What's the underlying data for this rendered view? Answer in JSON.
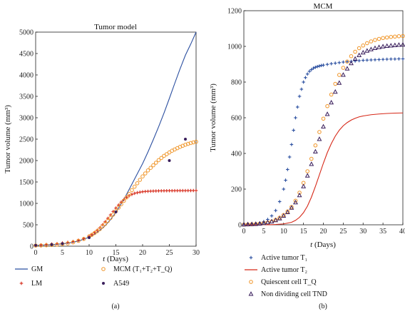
{
  "chart_data": [
    {
      "panel": "(a)",
      "type": "line",
      "title": "Tumor model",
      "xlabel_var": "t",
      "xlabel_unit": " (Days)",
      "ylabel": "Tumor volume (mm³)",
      "xlim": [
        0,
        30
      ],
      "ylim": [
        0,
        5000
      ],
      "xticks": [
        0,
        5,
        10,
        15,
        20,
        25,
        30
      ],
      "yticks": [
        0,
        500,
        1000,
        1500,
        2000,
        2500,
        3000,
        3500,
        4000,
        4500,
        5000
      ],
      "legend_placement": "bottom",
      "series": [
        {
          "name": "GM",
          "style": "line",
          "color": "#2b4fa0",
          "x": [
            0,
            2,
            4,
            6,
            8,
            10,
            11,
            12,
            13,
            14,
            15,
            16,
            17,
            18,
            19,
            20,
            21,
            22,
            23,
            24,
            25,
            26,
            27,
            28,
            29,
            30
          ],
          "y": [
            20,
            30,
            45,
            70,
            120,
            210,
            280,
            370,
            480,
            620,
            790,
            990,
            1210,
            1450,
            1690,
            1930,
            2200,
            2490,
            2790,
            3110,
            3450,
            3800,
            4140,
            4460,
            4720,
            5000
          ]
        },
        {
          "name": "LM",
          "style": "plus",
          "color": "#d62818",
          "x": [
            0,
            1,
            2,
            3,
            4,
            5,
            6,
            7,
            8,
            9,
            10,
            10.5,
            11,
            11.5,
            12,
            12.5,
            13,
            13.5,
            14,
            14.5,
            15,
            15.5,
            16,
            16.5,
            17,
            17.5,
            18,
            18.5,
            19,
            19.5,
            20,
            20.5,
            21,
            21.5,
            22,
            22.5,
            23,
            23.5,
            24,
            24.5,
            25,
            25.5,
            26,
            26.5,
            27,
            27.5,
            28,
            28.5,
            29,
            29.5,
            30
          ],
          "y": [
            20,
            30,
            40,
            50,
            60,
            75,
            90,
            110,
            140,
            180,
            230,
            270,
            320,
            370,
            430,
            500,
            570,
            650,
            730,
            810,
            890,
            960,
            1030,
            1090,
            1140,
            1180,
            1210,
            1235,
            1250,
            1262,
            1272,
            1278,
            1282,
            1285,
            1288,
            1290,
            1292,
            1293,
            1294,
            1295,
            1296,
            1296,
            1297,
            1297,
            1298,
            1298,
            1298,
            1299,
            1299,
            1300,
            1300
          ]
        },
        {
          "name": "MCM (T₁+T₂+T_Q)",
          "style": "circle",
          "color": "#f0962a",
          "x": [
            0,
            1,
            2,
            3,
            4,
            5,
            6,
            7,
            8,
            9,
            10,
            10.5,
            11,
            11.5,
            12,
            12.5,
            13,
            13.5,
            14,
            14.5,
            15,
            15.5,
            16,
            16.5,
            17,
            17.5,
            18,
            18.5,
            19,
            19.5,
            20,
            20.5,
            21,
            21.5,
            22,
            22.5,
            23,
            23.5,
            24,
            24.5,
            25,
            25.5,
            26,
            26.5,
            27,
            27.5,
            28,
            28.5,
            29,
            29.5,
            30
          ],
          "y": [
            15,
            18,
            22,
            28,
            36,
            48,
            65,
            90,
            125,
            170,
            230,
            265,
            305,
            350,
            400,
            460,
            520,
            590,
            660,
            740,
            820,
            900,
            980,
            1060,
            1140,
            1220,
            1310,
            1390,
            1470,
            1550,
            1630,
            1700,
            1770,
            1830,
            1890,
            1950,
            2010,
            2060,
            2110,
            2150,
            2190,
            2230,
            2260,
            2290,
            2320,
            2345,
            2370,
            2390,
            2410,
            2425,
            2440
          ]
        },
        {
          "name": "A549",
          "style": "dot",
          "color": "#3a1f5c",
          "x": [
            0,
            3,
            5,
            10,
            15,
            25,
            28
          ],
          "y": [
            20,
            40,
            60,
            200,
            800,
            2000,
            2500
          ]
        }
      ]
    },
    {
      "panel": "(b)",
      "type": "line",
      "title": "MCM",
      "xlabel_var": "t",
      "xlabel_unit": " (Days)",
      "ylabel": "Tumor volume (mm³)",
      "xlim": [
        0,
        40
      ],
      "ylim": [
        0,
        1200
      ],
      "xticks": [
        0,
        5,
        10,
        15,
        20,
        25,
        30,
        35,
        40
      ],
      "yticks": [
        0,
        200,
        400,
        600,
        800,
        1000,
        1200
      ],
      "legend_placement": "bottom",
      "series": [
        {
          "name": "Active tumor T₁",
          "style": "plus",
          "color": "#2b4fa0",
          "x": [
            0,
            1,
            2,
            3,
            4,
            5,
            6,
            7,
            8,
            9,
            10,
            10.5,
            11,
            11.5,
            12,
            12.5,
            13,
            13.5,
            14,
            14.5,
            15,
            15.5,
            16,
            16.5,
            17,
            17.5,
            18,
            18.5,
            19,
            19.5,
            20,
            21,
            22,
            23,
            24,
            25,
            26,
            27,
            28,
            29,
            30,
            31,
            32,
            33,
            34,
            35,
            36,
            37,
            38,
            39,
            40
          ],
          "y": [
            2,
            3,
            4,
            6,
            10,
            18,
            30,
            50,
            80,
            130,
            200,
            250,
            310,
            380,
            450,
            530,
            600,
            660,
            720,
            760,
            800,
            825,
            845,
            860,
            870,
            878,
            883,
            887,
            890,
            893,
            895,
            899,
            903,
            906,
            909,
            912,
            914,
            916,
            918,
            920,
            922,
            923,
            924,
            925,
            926,
            927,
            928,
            929,
            929,
            930,
            930
          ]
        },
        {
          "name": "Active tumor T₂",
          "style": "line",
          "color": "#d62818",
          "x": [
            0,
            2,
            4,
            6,
            8,
            10,
            12,
            13,
            14,
            15,
            16,
            17,
            18,
            19,
            20,
            21,
            22,
            23,
            24,
            25,
            26,
            27,
            28,
            29,
            30,
            32,
            34,
            36,
            38,
            40
          ],
          "y": [
            0,
            0,
            0,
            0,
            2,
            5,
            14,
            25,
            42,
            68,
            105,
            155,
            215,
            280,
            345,
            405,
            455,
            497,
            530,
            555,
            573,
            587,
            597,
            605,
            610,
            617,
            621,
            624,
            626,
            627
          ]
        },
        {
          "name": "Quiescent cell T_Q",
          "style": "circle",
          "color": "#f0962a",
          "x": [
            0,
            1,
            2,
            3,
            4,
            5,
            6,
            7,
            8,
            9,
            10,
            11,
            12,
            13,
            14,
            15,
            16,
            17,
            18,
            19,
            20,
            21,
            22,
            23,
            24,
            25,
            26,
            27,
            28,
            29,
            30,
            31,
            32,
            33,
            34,
            35,
            36,
            37,
            38,
            39,
            40
          ],
          "y": [
            1,
            2,
            3,
            4,
            6,
            9,
            13,
            19,
            28,
            40,
            55,
            75,
            100,
            135,
            180,
            235,
            300,
            370,
            445,
            520,
            595,
            665,
            730,
            790,
            840,
            880,
            915,
            945,
            970,
            990,
            1005,
            1018,
            1028,
            1036,
            1042,
            1047,
            1050,
            1053,
            1055,
            1057,
            1058
          ]
        },
        {
          "name": "Non dividing cell TND",
          "style": "triangle",
          "color": "#3a1f5c",
          "x": [
            0,
            1,
            2,
            3,
            4,
            5,
            6,
            7,
            8,
            9,
            10,
            11,
            12,
            13,
            14,
            15,
            16,
            17,
            18,
            19,
            20,
            21,
            22,
            23,
            24,
            25,
            26,
            27,
            28,
            29,
            30,
            31,
            32,
            33,
            34,
            35,
            36,
            37,
            38,
            39,
            40
          ],
          "y": [
            1,
            2,
            3,
            4,
            6,
            9,
            13,
            18,
            25,
            35,
            50,
            70,
            95,
            125,
            165,
            215,
            275,
            340,
            410,
            480,
            550,
            620,
            685,
            745,
            795,
            840,
            875,
            905,
            930,
            950,
            965,
            975,
            983,
            990,
            995,
            999,
            1002,
            1004,
            1006,
            1008,
            1009
          ]
        }
      ]
    }
  ]
}
